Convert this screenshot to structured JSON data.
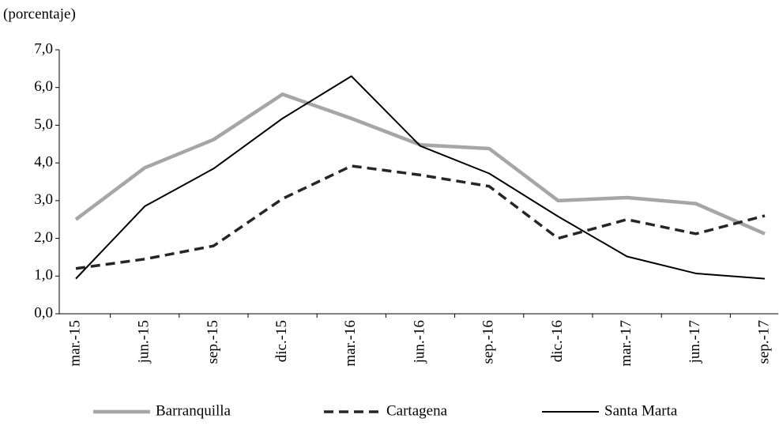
{
  "chart_data": {
    "type": "line",
    "y_label": "(porcentaje)",
    "categories": [
      "mar.-15",
      "jun.-15",
      "sep.-15",
      "dic.-15",
      "mar.-16",
      "jun.-16",
      "sep.-16",
      "dic.-16",
      "mar.-17",
      "jun.-17",
      "sep.-17"
    ],
    "series": [
      {
        "name": "Barranquilla",
        "color": "#a6a6a6",
        "line_style": "solid",
        "values": [
          2.5,
          3.87,
          4.62,
          5.82,
          5.18,
          4.48,
          4.38,
          3.0,
          3.08,
          2.92,
          2.12
        ]
      },
      {
        "name": "Cartagena",
        "color": "#262626",
        "line_style": "dashed",
        "values": [
          1.2,
          1.45,
          1.8,
          3.05,
          3.92,
          3.68,
          3.38,
          2.0,
          2.5,
          2.12,
          2.6
        ]
      },
      {
        "name": "Santa Marta",
        "color": "#000000",
        "line_style": "solid",
        "values": [
          0.93,
          2.85,
          3.85,
          5.18,
          6.3,
          4.45,
          3.72,
          2.58,
          1.52,
          1.07,
          0.93
        ]
      }
    ],
    "ylim": [
      0,
      7
    ],
    "yticks": [
      {
        "value": 0,
        "label": "0,0"
      },
      {
        "value": 1,
        "label": "1,0"
      },
      {
        "value": 2,
        "label": "2,0"
      },
      {
        "value": 3,
        "label": "3,0"
      },
      {
        "value": 4,
        "label": "4,0"
      },
      {
        "value": 5,
        "label": "5,0"
      },
      {
        "value": 6,
        "label": "6,0"
      },
      {
        "value": 7,
        "label": "7,0"
      }
    ],
    "grid": false,
    "legend": "bottom"
  }
}
